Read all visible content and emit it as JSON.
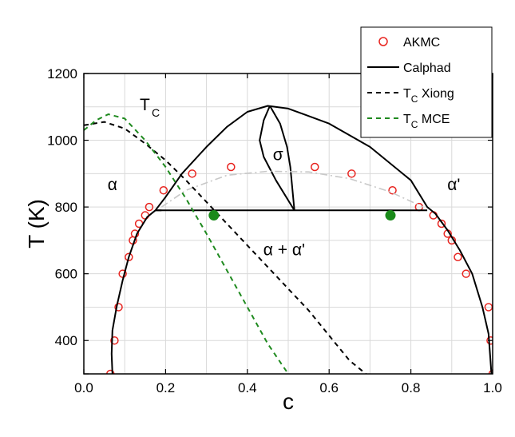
{
  "chart_data": {
    "type": "scatter",
    "title": "",
    "xlabel": "c",
    "ylabel": "T (K)",
    "xlim": [
      0.0,
      1.0
    ],
    "ylim": [
      300,
      1200
    ],
    "x_ticks": [
      "0.0",
      "0.2",
      "0.4",
      "0.6",
      "0.8",
      "1.0"
    ],
    "y_ticks": [
      "400",
      "600",
      "800",
      "1000",
      "1200"
    ],
    "grid": true,
    "legend_position": "top-right",
    "legend": [
      {
        "label": "AKMC",
        "style": "open-circle",
        "color": "#e8241f"
      },
      {
        "label": "Calphad",
        "style": "solid",
        "color": "#000000"
      },
      {
        "label_main": "T",
        "label_sub": "C",
        "label_rest": " Xiong",
        "style": "dashed",
        "color": "#000000"
      },
      {
        "label_main": "T",
        "label_sub": "C",
        "label_rest": " MCE",
        "style": "dashed",
        "color": "#1f8a1f"
      }
    ],
    "series": [
      {
        "name": "AKMC",
        "kind": "scatter",
        "color": "#e8241f",
        "points": [
          [
            0.065,
            300
          ],
          [
            0.075,
            400
          ],
          [
            0.085,
            500
          ],
          [
            0.095,
            600
          ],
          [
            0.11,
            650
          ],
          [
            0.12,
            700
          ],
          [
            0.125,
            720
          ],
          [
            0.135,
            750
          ],
          [
            0.15,
            775
          ],
          [
            0.16,
            800
          ],
          [
            0.195,
            850
          ],
          [
            0.265,
            900
          ],
          [
            0.36,
            920
          ],
          [
            0.565,
            920
          ],
          [
            0.655,
            900
          ],
          [
            0.755,
            850
          ],
          [
            0.82,
            800
          ],
          [
            0.855,
            775
          ],
          [
            0.875,
            750
          ],
          [
            0.89,
            720
          ],
          [
            0.9,
            700
          ],
          [
            0.915,
            650
          ],
          [
            0.935,
            600
          ],
          [
            0.99,
            500
          ],
          [
            0.995,
            400
          ],
          [
            1.0,
            300
          ]
        ]
      },
      {
        "name": "Calphad",
        "kind": "line",
        "color": "#000000",
        "dash": "solid",
        "segments": [
          [
            [
              0.07,
              300
            ],
            [
              0.068,
              360
            ],
            [
              0.07,
              430
            ],
            [
              0.08,
              500
            ],
            [
              0.095,
              580
            ],
            [
              0.11,
              650
            ],
            [
              0.13,
              720
            ],
            [
              0.155,
              770
            ],
            [
              0.175,
              790
            ],
            [
              0.2,
              830
            ],
            [
              0.24,
              900
            ],
            [
              0.3,
              980
            ],
            [
              0.35,
              1040
            ],
            [
              0.4,
              1085
            ],
            [
              0.45,
              1103
            ],
            [
              0.5,
              1095
            ],
            [
              0.6,
              1050
            ],
            [
              0.7,
              980
            ],
            [
              0.8,
              880
            ],
            [
              0.84,
              800
            ],
            [
              0.86,
              780
            ],
            [
              0.89,
              730
            ],
            [
              0.92,
              670
            ],
            [
              0.95,
              600
            ],
            [
              0.975,
              500
            ],
            [
              0.99,
              420
            ],
            [
              0.997,
              300
            ]
          ],
          [
            [
              0.175,
              790
            ],
            [
              0.84,
              790
            ]
          ],
          [
            [
              0.455,
              1103
            ],
            [
              0.44,
              1060
            ],
            [
              0.43,
              1000
            ],
            [
              0.44,
              950
            ],
            [
              0.47,
              880
            ],
            [
              0.515,
              790
            ]
          ],
          [
            [
              0.455,
              1103
            ],
            [
              0.48,
              1050
            ],
            [
              0.497,
              980
            ],
            [
              0.505,
              920
            ],
            [
              0.515,
              790
            ]
          ],
          [
            [
              0.175,
              790
            ],
            [
              0.19,
              790
            ]
          ]
        ]
      },
      {
        "name": "Calphad-dashdot",
        "kind": "line",
        "color": "#c8c8c8",
        "dash": "dashdot",
        "segments": [
          [
            [
              0.19,
              800
            ],
            [
              0.25,
              850
            ],
            [
              0.35,
              895
            ],
            [
              0.45,
              907
            ],
            [
              0.55,
              905
            ],
            [
              0.65,
              885
            ],
            [
              0.75,
              845
            ],
            [
              0.83,
              800
            ]
          ]
        ]
      },
      {
        "name": "Tc Xiong",
        "kind": "line",
        "color": "#000000",
        "dash": "dashed",
        "segments": [
          [
            [
              0.0,
              1045
            ],
            [
              0.05,
              1055
            ],
            [
              0.1,
              1035
            ],
            [
              0.15,
              990
            ],
            [
              0.2,
              940
            ],
            [
              0.25,
              880
            ],
            [
              0.3,
              815
            ],
            [
              0.35,
              750
            ],
            [
              0.4,
              685
            ],
            [
              0.45,
              620
            ],
            [
              0.5,
              555
            ],
            [
              0.55,
              490
            ],
            [
              0.6,
              415
            ],
            [
              0.65,
              340
            ],
            [
              0.69,
              300
            ]
          ]
        ]
      },
      {
        "name": "Tc MCE",
        "kind": "line",
        "color": "#1f8a1f",
        "dash": "dashed",
        "segments": [
          [
            [
              0.0,
              1030
            ],
            [
              0.03,
              1060
            ],
            [
              0.06,
              1078
            ],
            [
              0.1,
              1065
            ],
            [
              0.15,
              1000
            ],
            [
              0.2,
              920
            ],
            [
              0.25,
              825
            ],
            [
              0.3,
              720
            ],
            [
              0.35,
              610
            ],
            [
              0.4,
              500
            ],
            [
              0.45,
              390
            ],
            [
              0.5,
              300
            ]
          ]
        ]
      },
      {
        "name": "filled markers",
        "kind": "scatter",
        "color": "#1a8a1a",
        "filled": true,
        "points": [
          [
            0.318,
            775
          ],
          [
            0.75,
            775
          ]
        ]
      }
    ],
    "annotations": [
      {
        "text": "α",
        "x": 0.07,
        "y": 850
      },
      {
        "text": "α'",
        "x": 0.905,
        "y": 850
      },
      {
        "text": "σ",
        "x": 0.475,
        "y": 940
      },
      {
        "text": "α + α'",
        "x": 0.49,
        "y": 655
      }
    ],
    "tc_label": {
      "main": "T",
      "sub": "C"
    }
  }
}
